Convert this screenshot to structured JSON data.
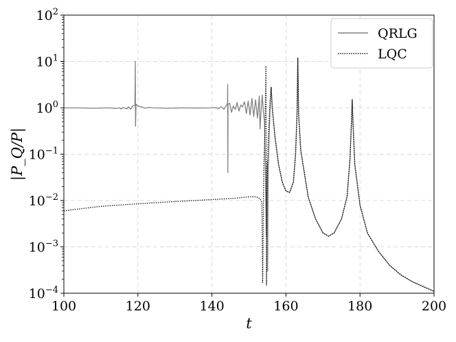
{
  "chart_data": {
    "type": "line",
    "title": "",
    "xlabel": "t",
    "ylabel": "|P_Q/P|",
    "xlim": [
      100,
      200
    ],
    "ylim": [
      0.0001,
      100
    ],
    "yscale": "log",
    "grid": true,
    "legend_position": "top-right",
    "x_ticks": [
      100,
      120,
      140,
      160,
      180,
      200
    ],
    "y_ticks": [
      {
        "value": 0.0001,
        "base": "10",
        "exp": "−4"
      },
      {
        "value": 0.001,
        "base": "10",
        "exp": "−3"
      },
      {
        "value": 0.01,
        "base": "10",
        "exp": "−2"
      },
      {
        "value": 0.1,
        "base": "10",
        "exp": "−1"
      },
      {
        "value": 1,
        "base": "10",
        "exp": "0"
      },
      {
        "value": 10,
        "base": "10",
        "exp": "1"
      },
      {
        "value": 100,
        "base": "10",
        "exp": "2"
      }
    ],
    "series": [
      {
        "name": "QRLG",
        "style": "solid",
        "color": "#808080",
        "points": [
          [
            100,
            1.0
          ],
          [
            104,
            1.0
          ],
          [
            108,
            0.98
          ],
          [
            112,
            1.0
          ],
          [
            114,
            0.97
          ],
          [
            115,
            1.0
          ],
          [
            115.5,
            0.94
          ],
          [
            116,
            1.02
          ],
          [
            117,
            0.95
          ],
          [
            117.5,
            1.05
          ],
          [
            118,
            0.93
          ],
          [
            118.5,
            1.08
          ],
          [
            119.2,
            1.15
          ],
          [
            119.3,
            10.0
          ],
          [
            119.35,
            0.4
          ],
          [
            119.5,
            1.2
          ],
          [
            120,
            1.1
          ],
          [
            121,
            1.05
          ],
          [
            122,
            0.98
          ],
          [
            123,
            1.02
          ],
          [
            124,
            1.0
          ],
          [
            128,
            0.98
          ],
          [
            132,
            1.0
          ],
          [
            136,
            0.99
          ],
          [
            140,
            1.0
          ],
          [
            141,
            1.01
          ],
          [
            141.8,
            0.96
          ],
          [
            142.5,
            1.06
          ],
          [
            143.2,
            0.93
          ],
          [
            143.8,
            1.1
          ],
          [
            144.2,
            1.25
          ],
          [
            144.25,
            3.2
          ],
          [
            144.3,
            0.04
          ],
          [
            144.35,
            1.2
          ],
          [
            144.8,
            1.25
          ],
          [
            145.3,
            0.8
          ],
          [
            145.8,
            1.1
          ],
          [
            146.3,
            0.92
          ],
          [
            146.8,
            1.3
          ],
          [
            147.3,
            0.85
          ],
          [
            147.8,
            1.15
          ],
          [
            148.2,
            1.05
          ],
          [
            148.8,
            1.35
          ],
          [
            149.3,
            0.75
          ],
          [
            149.8,
            1.4
          ],
          [
            150.3,
            0.7
          ],
          [
            150.8,
            1.6
          ],
          [
            151.3,
            0.65
          ],
          [
            151.8,
            1.5
          ],
          [
            152.3,
            0.6
          ],
          [
            152.8,
            1.8
          ],
          [
            153.0,
            0.35
          ],
          [
            153.3,
            0.9
          ],
          [
            153.6,
            1.9
          ],
          [
            153.9,
            0.8
          ],
          [
            154.2,
            0.5
          ],
          [
            154.5,
            0.02
          ],
          [
            154.7,
            0.0017
          ],
          [
            154.85,
            0.05
          ],
          [
            154.95,
            0.07
          ],
          [
            155.05,
            0.0003
          ],
          [
            155.2,
            0.04
          ],
          [
            155.5,
            0.3
          ],
          [
            155.8,
            1.5
          ],
          [
            156.0,
            2.8
          ],
          [
            156.3,
            1.0
          ],
          [
            157,
            0.25
          ],
          [
            158,
            0.06
          ],
          [
            159,
            0.025
          ],
          [
            160,
            0.016
          ],
          [
            161,
            0.015
          ],
          [
            162,
            0.025
          ],
          [
            162.6,
            0.1
          ],
          [
            163.0,
            0.8
          ],
          [
            163.2,
            12.0
          ],
          [
            163.4,
            0.8
          ],
          [
            164,
            0.12
          ],
          [
            166,
            0.012
          ],
          [
            168,
            0.004
          ],
          [
            170,
            0.002
          ],
          [
            171.5,
            0.0017
          ],
          [
            173,
            0.002
          ],
          [
            175,
            0.004
          ],
          [
            176.5,
            0.012
          ],
          [
            177.3,
            0.08
          ],
          [
            177.7,
            0.5
          ],
          [
            177.9,
            1.5
          ],
          [
            178.1,
            0.5
          ],
          [
            178.6,
            0.06
          ],
          [
            180,
            0.008
          ],
          [
            182,
            0.002
          ],
          [
            185,
            0.0008
          ],
          [
            188,
            0.0004
          ],
          [
            191,
            0.00025
          ],
          [
            194,
            0.00018
          ],
          [
            197,
            0.00014
          ],
          [
            200,
            0.00011
          ]
        ]
      },
      {
        "name": "LQC",
        "style": "dotted",
        "color": "#000000",
        "points": [
          [
            100,
            0.006
          ],
          [
            110,
            0.0075
          ],
          [
            120,
            0.0085
          ],
          [
            130,
            0.0095
          ],
          [
            140,
            0.0105
          ],
          [
            145,
            0.011
          ],
          [
            150,
            0.012
          ],
          [
            152,
            0.012
          ],
          [
            153,
            0.011
          ],
          [
            153.5,
            0.009
          ],
          [
            153.7,
            0.00017
          ],
          [
            153.8,
            0.001
          ],
          [
            154.0,
            0.05
          ],
          [
            154.3,
            0.3
          ],
          [
            154.6,
            8.0
          ],
          [
            154.75,
            0.00015
          ],
          [
            154.85,
            0.02
          ],
          [
            155.2,
            0.2
          ],
          [
            155.6,
            1.0
          ],
          [
            156.0,
            2.8
          ],
          [
            156.3,
            1.0
          ],
          [
            157,
            0.25
          ],
          [
            158,
            0.06
          ],
          [
            159,
            0.025
          ],
          [
            160,
            0.016
          ],
          [
            161,
            0.015
          ],
          [
            162,
            0.025
          ],
          [
            162.6,
            0.1
          ],
          [
            163.0,
            0.8
          ],
          [
            163.2,
            12.0
          ],
          [
            163.4,
            0.8
          ],
          [
            164,
            0.12
          ],
          [
            166,
            0.012
          ],
          [
            168,
            0.004
          ],
          [
            170,
            0.002
          ],
          [
            171.5,
            0.0017
          ],
          [
            173,
            0.002
          ],
          [
            175,
            0.004
          ],
          [
            176.5,
            0.012
          ],
          [
            177.3,
            0.08
          ],
          [
            177.7,
            0.5
          ],
          [
            177.9,
            1.5
          ],
          [
            178.1,
            0.5
          ],
          [
            178.6,
            0.06
          ],
          [
            180,
            0.008
          ],
          [
            182,
            0.002
          ],
          [
            185,
            0.0008
          ],
          [
            188,
            0.0004
          ],
          [
            191,
            0.00025
          ],
          [
            194,
            0.00018
          ],
          [
            197,
            0.00014
          ],
          [
            200,
            0.00011
          ]
        ]
      }
    ]
  }
}
